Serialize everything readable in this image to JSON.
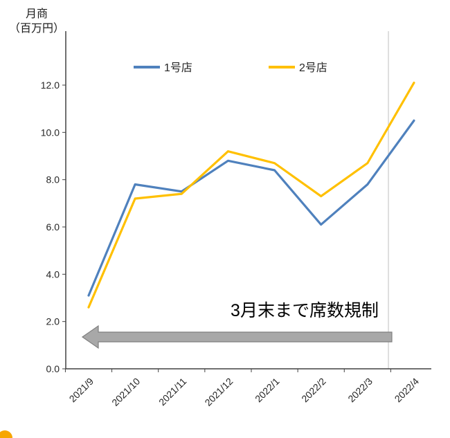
{
  "chart_data": {
    "type": "line",
    "title": "月商（百万円）",
    "axis_title": {
      "line1": "月商",
      "line2": "（百万円）"
    },
    "categories": [
      "2021/9",
      "2021/10",
      "2021/11",
      "2021/12",
      "2022/1",
      "2022/2",
      "2022/3",
      "2022/4"
    ],
    "series": [
      {
        "name": "1号店",
        "color": "#4F81BD",
        "values": [
          3.1,
          7.8,
          7.5,
          8.8,
          8.4,
          6.1,
          7.8,
          10.5
        ]
      },
      {
        "name": "2号店",
        "color": "#FFC000",
        "values": [
          2.6,
          7.2,
          7.4,
          9.2,
          8.7,
          7.3,
          8.7,
          12.1
        ]
      }
    ],
    "xlabel": "",
    "ylabel": "月商（百万円）",
    "ylim": [
      0,
      13
    ],
    "yticks": [
      "0.0",
      "2.0",
      "4.0",
      "6.0",
      "8.0",
      "10.0",
      "12.0"
    ],
    "grid": false,
    "legend_position": "top",
    "vline": {
      "index": 6.45,
      "color": "#BFBFBF"
    },
    "annotation": {
      "text": "3月末まで席数規制",
      "arrow_color": "#A8A8A8",
      "arrow_border": "#7F7F7F"
    },
    "axis_color": "#404040",
    "decoration_dot_color": "#F7A600"
  }
}
